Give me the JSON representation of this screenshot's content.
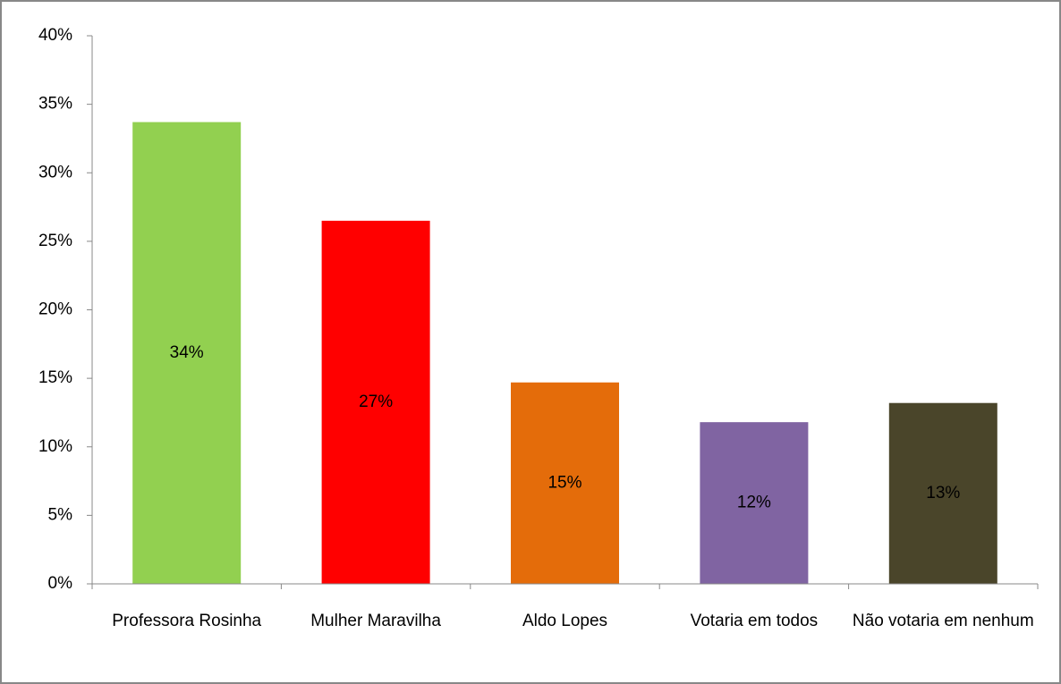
{
  "chart_data": {
    "type": "bar",
    "categories": [
      "Professora Rosinha",
      "Mulher Maravilha",
      "Aldo Lopes",
      "Votaria em todos",
      "Não votaria em nenhum"
    ],
    "values": [
      33.7,
      26.5,
      14.7,
      11.8,
      13.2
    ],
    "value_labels": [
      "34%",
      "27%",
      "15%",
      "12%",
      "13%"
    ],
    "colors": [
      "#92d050",
      "#ff0000",
      "#e46c0a",
      "#8064a2",
      "#4a452a"
    ],
    "ylim": [
      0,
      40
    ],
    "yticks": [
      {
        "value": 0,
        "label": "0%"
      },
      {
        "value": 5,
        "label": "5%"
      },
      {
        "value": 10,
        "label": "10%"
      },
      {
        "value": 15,
        "label": "15%"
      },
      {
        "value": 20,
        "label": "20%"
      },
      {
        "value": 25,
        "label": "25%"
      },
      {
        "value": 30,
        "label": "30%"
      },
      {
        "value": 35,
        "label": "35%"
      },
      {
        "value": 40,
        "label": "40%"
      }
    ],
    "grid": false
  }
}
